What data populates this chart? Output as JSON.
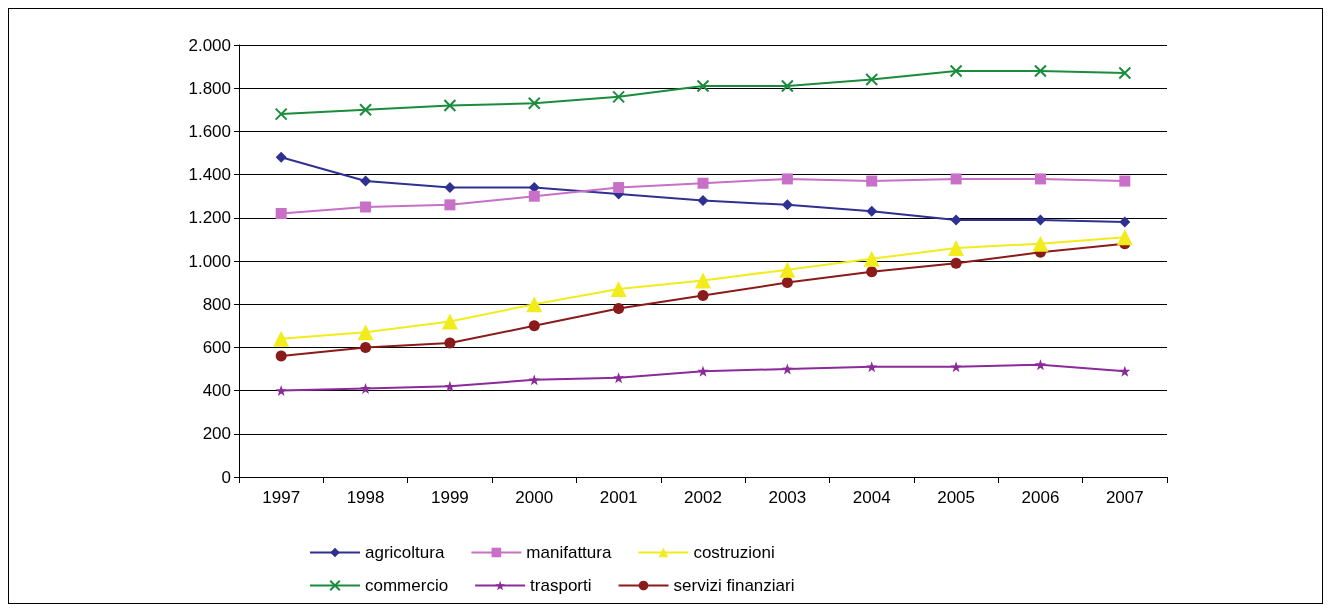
{
  "chart_data": {
    "type": "line",
    "categories": [
      "1997",
      "1998",
      "1999",
      "2000",
      "2001",
      "2002",
      "2003",
      "2004",
      "2005",
      "2006",
      "2007"
    ],
    "series": [
      {
        "name": "agricoltura",
        "color": "#2e3192",
        "marker": "diamond",
        "values": [
          1480,
          1370,
          1340,
          1340,
          1310,
          1280,
          1260,
          1230,
          1190,
          1190,
          1180
        ]
      },
      {
        "name": "manifattura",
        "color": "#c86fc8",
        "marker": "square",
        "values": [
          1220,
          1250,
          1260,
          1300,
          1340,
          1360,
          1380,
          1370,
          1380,
          1380,
          1370
        ]
      },
      {
        "name": "costruzioni",
        "color": "#f2ec1c",
        "marker": "triangle",
        "values": [
          640,
          670,
          720,
          800,
          870,
          910,
          960,
          1010,
          1060,
          1080,
          1110
        ]
      },
      {
        "name": "commercio",
        "color": "#1a8c3c",
        "marker": "cross",
        "values": [
          1680,
          1700,
          1720,
          1730,
          1760,
          1810,
          1810,
          1840,
          1880,
          1880,
          1870
        ]
      },
      {
        "name": "trasporti",
        "color": "#8b2a9a",
        "marker": "star",
        "values": [
          400,
          410,
          420,
          450,
          460,
          490,
          500,
          510,
          510,
          520,
          490
        ]
      },
      {
        "name": "servizi finanziari",
        "color": "#8b1a1a",
        "marker": "circle",
        "values": [
          560,
          600,
          620,
          700,
          780,
          840,
          900,
          950,
          990,
          1040,
          1080
        ]
      }
    ],
    "ylim": [
      0,
      2000
    ],
    "yticks": [
      {
        "value": 0,
        "label": "0"
      },
      {
        "value": 200,
        "label": "200"
      },
      {
        "value": 400,
        "label": "400"
      },
      {
        "value": 600,
        "label": "600"
      },
      {
        "value": 800,
        "label": "800"
      },
      {
        "value": 1000,
        "label": "1.000"
      },
      {
        "value": 1200,
        "label": "1.200"
      },
      {
        "value": 1400,
        "label": "1.400"
      },
      {
        "value": 1600,
        "label": "1.600"
      },
      {
        "value": 1800,
        "label": "1.800"
      },
      {
        "value": 2000,
        "label": "2.000"
      }
    ],
    "grid": "y",
    "legend": "bottom",
    "line_style": "solid"
  }
}
